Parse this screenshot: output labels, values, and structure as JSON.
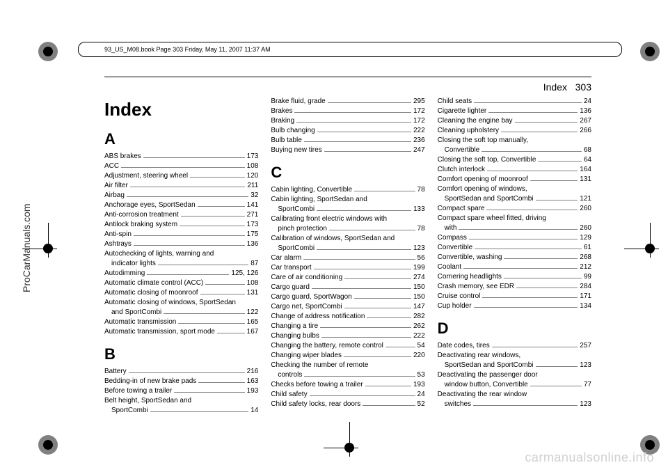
{
  "meta": {
    "sidebar": "ProCarManuals.com",
    "header": "93_US_M08.book  Page 303  Friday, May 11, 2007  11:37 AM",
    "page_label": "Index",
    "page_number": "303",
    "index_title": "Index",
    "watermark": "carmanualsonline.info"
  },
  "col1": {
    "letters": [
      "A",
      "B"
    ],
    "A": [
      {
        "label": "ABS brakes",
        "page": "173"
      },
      {
        "label": "ACC",
        "page": "108"
      },
      {
        "label": "Adjustment, steering wheel",
        "page": "120"
      },
      {
        "label": "Air filter",
        "page": "211"
      },
      {
        "label": "Airbag",
        "page": "32"
      },
      {
        "label": "Anchorage eyes, SportSedan",
        "page": "141"
      },
      {
        "label": "Anti-corrosion treatment",
        "page": "271"
      },
      {
        "label": "Antilock braking system",
        "page": "173"
      },
      {
        "label": "Anti-spin",
        "page": "175"
      },
      {
        "label": "Ashtrays",
        "page": "136"
      },
      {
        "label": "Autochecking of lights, warning and",
        "page": ""
      },
      {
        "label": "indicator lights",
        "page": "87",
        "indent": true
      },
      {
        "label": "Autodimming",
        "page": "125, 126"
      },
      {
        "label": "Automatic climate control (ACC)",
        "page": "108"
      },
      {
        "label": "Automatic closing of moonroof",
        "page": "131"
      },
      {
        "label": "Automatic closing of windows, SportSedan",
        "page": ""
      },
      {
        "label": "and SportCombi",
        "page": "122",
        "indent": true
      },
      {
        "label": "Automatic transmission",
        "page": "165"
      },
      {
        "label": "Automatic transmission, sport mode",
        "page": "167"
      }
    ],
    "B": [
      {
        "label": "Battery",
        "page": "216"
      },
      {
        "label": "Bedding-in of new brake pads",
        "page": "163"
      },
      {
        "label": "Before towing a trailer",
        "page": "193"
      },
      {
        "label": "Belt height, SportSedan and",
        "page": ""
      },
      {
        "label": "SportCombi",
        "page": "14",
        "indent": true
      }
    ]
  },
  "col2": {
    "top": [
      {
        "label": "Brake fluid, grade",
        "page": "295"
      },
      {
        "label": "Brakes",
        "page": "172"
      },
      {
        "label": "Braking",
        "page": "172"
      },
      {
        "label": "Bulb changing",
        "page": "222"
      },
      {
        "label": "Bulb table",
        "page": "236"
      },
      {
        "label": "Buying new tires",
        "page": "247"
      }
    ],
    "letters": [
      "C"
    ],
    "C": [
      {
        "label": "Cabin lighting, Convertible",
        "page": "78"
      },
      {
        "label": "Cabin lighting, SportSedan and",
        "page": ""
      },
      {
        "label": "SportCombi",
        "page": "133",
        "indent": true
      },
      {
        "label": "Calibrating front electric windows with",
        "page": ""
      },
      {
        "label": "pinch protection",
        "page": "78",
        "indent": true
      },
      {
        "label": "Calibration of windows, SportSedan and",
        "page": ""
      },
      {
        "label": "SportCombi",
        "page": "123",
        "indent": true
      },
      {
        "label": "Car alarm",
        "page": "56"
      },
      {
        "label": "Car transport",
        "page": "199"
      },
      {
        "label": "Care of air conditioning",
        "page": "274"
      },
      {
        "label": "Cargo guard",
        "page": "150"
      },
      {
        "label": "Cargo guard, SportWagon",
        "page": "150"
      },
      {
        "label": "Cargo net, SportCombi",
        "page": "147"
      },
      {
        "label": "Change of address notification",
        "page": "282"
      },
      {
        "label": "Changing a tire",
        "page": "262"
      },
      {
        "label": "Changing bulbs",
        "page": "222"
      },
      {
        "label": "Changing the battery, remote control",
        "page": "54"
      },
      {
        "label": "Changing wiper blades",
        "page": "220"
      },
      {
        "label": "Checking the number of remote",
        "page": ""
      },
      {
        "label": "controls",
        "page": "53",
        "indent": true
      },
      {
        "label": "Checks before towing a trailer",
        "page": "193"
      },
      {
        "label": "Child safety",
        "page": "24"
      },
      {
        "label": "Child safety locks, rear doors",
        "page": "52"
      }
    ]
  },
  "col3": {
    "top": [
      {
        "label": "Child seats",
        "page": "24"
      },
      {
        "label": "Cigarette lighter",
        "page": "136"
      },
      {
        "label": "Cleaning the engine bay",
        "page": "267"
      },
      {
        "label": "Cleaning upholstery",
        "page": "266"
      },
      {
        "label": "Closing the soft top manually,",
        "page": ""
      },
      {
        "label": "Convertible",
        "page": "68",
        "indent": true
      },
      {
        "label": "Closing the soft top, Convertible",
        "page": "64"
      },
      {
        "label": "Clutch interlock",
        "page": "164"
      },
      {
        "label": "Comfort opening of moonroof",
        "page": "131"
      },
      {
        "label": "Comfort opening of windows,",
        "page": ""
      },
      {
        "label": "SportSedan and SportCombi",
        "page": "121",
        "indent": true
      },
      {
        "label": "Compact spare",
        "page": "260"
      },
      {
        "label": "Compact spare wheel fitted, driving",
        "page": ""
      },
      {
        "label": "with",
        "page": "260",
        "indent": true
      },
      {
        "label": "Compass",
        "page": "129"
      },
      {
        "label": "Convertible",
        "page": "61"
      },
      {
        "label": "Convertible, washing",
        "page": "268"
      },
      {
        "label": "Coolant",
        "page": "212"
      },
      {
        "label": "Cornering headlights",
        "page": "99"
      },
      {
        "label": "Crash memory, see EDR",
        "page": "284"
      },
      {
        "label": "Cruise control",
        "page": "171"
      },
      {
        "label": "Cup holder",
        "page": "134"
      }
    ],
    "letters": [
      "D"
    ],
    "D": [
      {
        "label": "Date codes, tires",
        "page": "257"
      },
      {
        "label": "Deactivating rear windows,",
        "page": ""
      },
      {
        "label": "SportSedan and SportCombi",
        "page": "123",
        "indent": true
      },
      {
        "label": "Deactivating the passenger door",
        "page": ""
      },
      {
        "label": "window button, Convertible",
        "page": "77",
        "indent": true
      },
      {
        "label": "Deactivating the rear window",
        "page": ""
      },
      {
        "label": "switches",
        "page": "123",
        "indent": true
      }
    ]
  }
}
